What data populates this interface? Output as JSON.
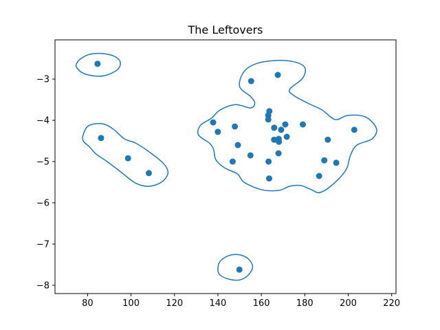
{
  "chart_data": {
    "type": "scatter",
    "title": "The Leftovers",
    "xlabel": "",
    "ylabel": "",
    "xlim": [
      65,
      222
    ],
    "ylim": [
      -8.2,
      -2.05
    ],
    "xticks": [
      80,
      100,
      120,
      140,
      160,
      180,
      200,
      220
    ],
    "yticks": [
      -3,
      -4,
      -5,
      -6,
      -7,
      -8
    ],
    "xtick_labels": [
      "80",
      "100",
      "120",
      "140",
      "160",
      "180",
      "200",
      "220"
    ],
    "ytick_labels": [
      "−3",
      "−4",
      "−5",
      "−6",
      "−7",
      "−8"
    ],
    "grid": false,
    "point_color": "#1f77b4",
    "contour_color": "#1f77b4",
    "points": [
      {
        "x": 84.6,
        "y": -2.63
      },
      {
        "x": 86.2,
        "y": -4.43
      },
      {
        "x": 98.6,
        "y": -4.92
      },
      {
        "x": 108.2,
        "y": -5.28
      },
      {
        "x": 149.9,
        "y": -7.62
      },
      {
        "x": 137.8,
        "y": -4.05
      },
      {
        "x": 140.0,
        "y": -4.28
      },
      {
        "x": 147.8,
        "y": -4.15
      },
      {
        "x": 149.2,
        "y": -4.6
      },
      {
        "x": 146.8,
        "y": -5.0
      },
      {
        "x": 155.3,
        "y": -3.05
      },
      {
        "x": 155.0,
        "y": -4.85
      },
      {
        "x": 167.6,
        "y": -2.9
      },
      {
        "x": 163.7,
        "y": -3.78
      },
      {
        "x": 163.2,
        "y": -3.88
      },
      {
        "x": 163.2,
        "y": -3.98
      },
      {
        "x": 165.9,
        "y": -4.18
      },
      {
        "x": 169.1,
        "y": -4.23
      },
      {
        "x": 171.0,
        "y": -4.1
      },
      {
        "x": 171.7,
        "y": -4.4
      },
      {
        "x": 165.9,
        "y": -4.47
      },
      {
        "x": 168.0,
        "y": -4.45
      },
      {
        "x": 168.1,
        "y": -4.52
      },
      {
        "x": 167.9,
        "y": -4.8
      },
      {
        "x": 163.3,
        "y": -5.0
      },
      {
        "x": 163.6,
        "y": -5.41
      },
      {
        "x": 179.1,
        "y": -4.1
      },
      {
        "x": 190.6,
        "y": -4.47
      },
      {
        "x": 189.0,
        "y": -4.97
      },
      {
        "x": 194.5,
        "y": -5.03
      },
      {
        "x": 186.6,
        "y": -5.35
      },
      {
        "x": 202.8,
        "y": -4.23
      }
    ],
    "contours": [
      {
        "points": [
          [
            75,
            -2.62
          ],
          [
            77,
            -2.5
          ],
          [
            81,
            -2.4
          ],
          [
            86,
            -2.38
          ],
          [
            92,
            -2.44
          ],
          [
            95,
            -2.58
          ],
          [
            94,
            -2.76
          ],
          [
            89,
            -2.9
          ],
          [
            84,
            -2.93
          ],
          [
            78,
            -2.86
          ],
          [
            75,
            -2.72
          ]
        ]
      },
      {
        "points": [
          [
            78,
            -4.35
          ],
          [
            80,
            -4.15
          ],
          [
            84,
            -4.08
          ],
          [
            88,
            -4.1
          ],
          [
            92,
            -4.22
          ],
          [
            97,
            -4.45
          ],
          [
            102,
            -4.55
          ],
          [
            108,
            -4.75
          ],
          [
            115,
            -5.05
          ],
          [
            117,
            -5.28
          ],
          [
            114,
            -5.5
          ],
          [
            108,
            -5.6
          ],
          [
            102,
            -5.52
          ],
          [
            96,
            -5.28
          ],
          [
            89,
            -5.0
          ],
          [
            84,
            -4.82
          ],
          [
            81,
            -4.65
          ],
          [
            78,
            -4.5
          ]
        ]
      },
      {
        "points": [
          [
            140,
            -7.62
          ],
          [
            141,
            -7.42
          ],
          [
            145,
            -7.28
          ],
          [
            150,
            -7.26
          ],
          [
            154,
            -7.36
          ],
          [
            156,
            -7.55
          ],
          [
            154,
            -7.75
          ],
          [
            150,
            -7.87
          ],
          [
            145,
            -7.85
          ],
          [
            141,
            -7.75
          ]
        ]
      },
      {
        "points": [
          [
            137,
            -3.95
          ],
          [
            141,
            -3.75
          ],
          [
            148,
            -3.62
          ],
          [
            155,
            -3.7
          ],
          [
            157,
            -3.58
          ],
          [
            155,
            -3.42
          ],
          [
            150,
            -3.18
          ],
          [
            152,
            -2.82
          ],
          [
            158,
            -2.62
          ],
          [
            167,
            -2.55
          ],
          [
            175,
            -2.58
          ],
          [
            180,
            -2.72
          ],
          [
            179,
            -2.98
          ],
          [
            173,
            -3.25
          ],
          [
            175,
            -3.4
          ],
          [
            182,
            -3.6
          ],
          [
            188,
            -3.75
          ],
          [
            194,
            -3.98
          ],
          [
            200,
            -3.88
          ],
          [
            208,
            -3.92
          ],
          [
            213,
            -4.2
          ],
          [
            211,
            -4.45
          ],
          [
            204,
            -4.6
          ],
          [
            201,
            -4.85
          ],
          [
            199,
            -5.2
          ],
          [
            193,
            -5.55
          ],
          [
            187,
            -5.75
          ],
          [
            183,
            -5.68
          ],
          [
            178,
            -5.58
          ],
          [
            173,
            -5.6
          ],
          [
            168,
            -5.7
          ],
          [
            160,
            -5.68
          ],
          [
            152,
            -5.5
          ],
          [
            149,
            -5.3
          ],
          [
            143,
            -5.15
          ],
          [
            139,
            -4.95
          ],
          [
            138,
            -4.7
          ],
          [
            136,
            -4.55
          ],
          [
            131,
            -4.35
          ],
          [
            132,
            -4.12
          ]
        ]
      }
    ]
  }
}
